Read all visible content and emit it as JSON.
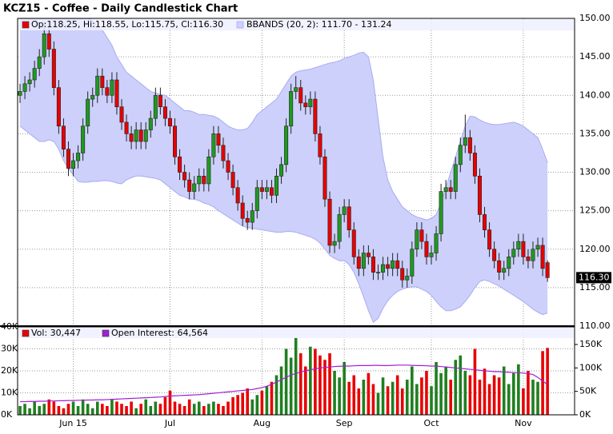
{
  "chart_data": [
    {
      "type": "candlestick",
      "title": "KCZ15 - Coffee - Daily Candlestick Chart",
      "xlim": [
        -0.5,
        114.6
      ],
      "ylim": [
        110,
        150
      ],
      "yticks": [
        {
          "value": 110,
          "label": "110.00"
        },
        {
          "value": 115,
          "label": "115.00"
        },
        {
          "value": 120,
          "label": "120.00"
        },
        {
          "value": 125,
          "label": "125.00"
        },
        {
          "value": 130,
          "label": "130.00"
        },
        {
          "value": 135,
          "label": "135.00"
        },
        {
          "value": 140,
          "label": "140.00"
        },
        {
          "value": 145,
          "label": "145.00"
        },
        {
          "value": 150,
          "label": "150.00"
        }
      ],
      "grid": true,
      "ohlc": {
        "name": "Op:118.25, Hi:118.55, Lo:115.75, Cl:116.30",
        "color": "#e80000",
        "up_color": "#1f9a1f",
        "down_color": "#e80000",
        "open": [
          140,
          140.5,
          141.5,
          142,
          143.5,
          145,
          148,
          146,
          141,
          136,
          133,
          130.5,
          131.5,
          132.5,
          136,
          139.5,
          140,
          142.5,
          141,
          140,
          142,
          138.5,
          136.5,
          135,
          134,
          135.5,
          134,
          135.5,
          137,
          140,
          138.5,
          137,
          136,
          132,
          130,
          129,
          127.5,
          128.5,
          129.5,
          128.5,
          132,
          135,
          133.5,
          131.5,
          130,
          128,
          126,
          124,
          123.5,
          125,
          128,
          127.5,
          128,
          127,
          129.5,
          131,
          136,
          140.5,
          141,
          139,
          138.5,
          139.5,
          135,
          132,
          126.5,
          120.5,
          121,
          124.5,
          125.5,
          122.5,
          119,
          117.5,
          119.5,
          119,
          117,
          117,
          118,
          117.5,
          118.5,
          117.5,
          116,
          116.5,
          120,
          122.5,
          121,
          119,
          119.5,
          122,
          127.5,
          128,
          127.5,
          131,
          133.5,
          134.5,
          132.5,
          129.5,
          124.5,
          122.5,
          120,
          118.5,
          117,
          117.5,
          119,
          120,
          121,
          119,
          118.5,
          120,
          120.5,
          118.25
        ],
        "high": [
          141.5,
          142.5,
          143,
          144.5,
          146,
          149.5,
          149,
          147,
          142,
          137,
          134,
          132.5,
          133.5,
          137,
          140.5,
          141,
          143.5,
          143.5,
          142,
          143,
          143,
          139.5,
          137.5,
          136,
          136.5,
          136.5,
          136.5,
          138,
          141,
          141,
          139.5,
          138,
          137,
          133,
          131,
          130,
          129.5,
          130.5,
          130.5,
          133,
          136,
          136,
          134.5,
          132.5,
          131,
          129,
          127,
          125,
          126,
          129,
          129,
          129,
          129,
          130.5,
          132,
          137,
          141.5,
          142.5,
          142,
          140,
          140.5,
          140.5,
          136,
          133,
          127.5,
          122,
          125.5,
          126.5,
          126.5,
          123.5,
          120,
          120.5,
          120.5,
          120,
          118,
          119,
          119,
          119.5,
          119.5,
          118.5,
          117.5,
          121,
          123.5,
          123.5,
          122,
          120.5,
          123,
          128.5,
          129,
          129,
          132,
          134.5,
          137.5,
          135.5,
          133.5,
          130.5,
          125.5,
          123.5,
          121,
          119.5,
          118.5,
          120,
          121,
          122,
          122,
          120,
          121,
          121.5,
          121.5,
          118.55
        ],
        "low": [
          139,
          139.5,
          140.5,
          141,
          142.5,
          144,
          145,
          140,
          135,
          132,
          129.5,
          129.5,
          130.5,
          131.5,
          135,
          138.5,
          139,
          140,
          139,
          139,
          137.5,
          135.5,
          134,
          133,
          133,
          133,
          133,
          134.5,
          136,
          137.5,
          136,
          135,
          131,
          129,
          128,
          126.5,
          126.5,
          127.5,
          127.5,
          127.5,
          131,
          132.5,
          130.5,
          129,
          127,
          125,
          123,
          122.5,
          122.5,
          124,
          126.5,
          126.5,
          126,
          126,
          128.5,
          130,
          135,
          139.5,
          138,
          137.5,
          137.5,
          134,
          131,
          125.5,
          119.5,
          119.5,
          120,
          123.5,
          121.5,
          118,
          116.5,
          116.5,
          118,
          116,
          116,
          116,
          116.5,
          116.5,
          116.5,
          115,
          115,
          115.5,
          119,
          120,
          118,
          118,
          118.5,
          121,
          126.5,
          126.5,
          126.5,
          130,
          132.5,
          131.5,
          128.5,
          123.5,
          121.5,
          119,
          117.5,
          116,
          116,
          116.5,
          118,
          119,
          118,
          117.5,
          117.5,
          119,
          116.5,
          115.75
        ],
        "close": [
          140.5,
          141.5,
          142,
          143.5,
          145,
          148,
          146,
          141,
          136,
          133,
          130.5,
          131.5,
          132.5,
          136,
          139.5,
          140,
          142.5,
          141,
          140,
          142,
          138.5,
          136.5,
          135,
          134,
          135.5,
          134,
          135.5,
          137,
          140,
          138.5,
          137,
          136,
          132,
          130,
          129,
          127.5,
          128.5,
          129.5,
          128.5,
          132,
          135,
          133.5,
          131.5,
          130,
          128,
          126,
          124,
          123.5,
          125,
          128,
          127.5,
          128,
          127,
          129.5,
          131,
          136,
          140.5,
          141,
          139,
          138.5,
          139.5,
          135,
          132,
          126.5,
          120.5,
          121,
          124.5,
          125.5,
          122.5,
          119,
          117.5,
          119.5,
          119,
          117,
          117,
          118,
          117.5,
          118.5,
          117.5,
          116,
          116.5,
          120,
          122.5,
          121,
          119,
          119.5,
          122,
          127.5,
          128,
          127.5,
          131,
          133.5,
          134.5,
          132.5,
          129.5,
          124.5,
          122.5,
          120,
          118.5,
          117,
          117.5,
          119,
          120,
          121,
          119,
          118.5,
          120,
          120.5,
          117.5,
          116.3
        ],
        "last_label": "116.30"
      },
      "bbands": {
        "name": "BBANDS (20, 2): 111.70 - 131.24",
        "color": "#a9acf2",
        "fill": "#ccd0fb",
        "upper": [
          150,
          150,
          150,
          150,
          150,
          150,
          150,
          150,
          150,
          150,
          150,
          150,
          150,
          150,
          150,
          149.8,
          149,
          148.5,
          147.5,
          146.5,
          145,
          144,
          143,
          142.5,
          142,
          141.5,
          141,
          140.5,
          140.3,
          140.1,
          140,
          139.5,
          139,
          138.5,
          138,
          138,
          137.8,
          137.5,
          137.5,
          137.4,
          137.3,
          137,
          136.5,
          136,
          135.7,
          135.5,
          135.5,
          135.7,
          136.5,
          137.5,
          138,
          138.5,
          139,
          139.5,
          140.5,
          141.5,
          142.5,
          143,
          143.2,
          143.3,
          143.4,
          143.6,
          143.8,
          144,
          144.2,
          144.3,
          144.5,
          144.8,
          145,
          145.2,
          145.5,
          145.6,
          145,
          142,
          137,
          132,
          129,
          127.5,
          126.5,
          125.5,
          125,
          124.5,
          124.2,
          124,
          123.8,
          124,
          124.5,
          126,
          128,
          130,
          132,
          134,
          136,
          137.3,
          137.2,
          136.8,
          136.5,
          136.3,
          136.2,
          136.2,
          136.3,
          136.4,
          136.5,
          136.3,
          136,
          135.5,
          135,
          134.5,
          133,
          131.24
        ],
        "lower": [
          136,
          135.5,
          135,
          134.5,
          134,
          134,
          134.2,
          134,
          133,
          131.5,
          130.5,
          129.7,
          128.8,
          128.7,
          128.7,
          128.8,
          128.8,
          128.9,
          128.9,
          128.8,
          128.6,
          128.5,
          129,
          129.3,
          129.5,
          129.5,
          129.4,
          129.3,
          129.2,
          129,
          128.5,
          128,
          127.5,
          127,
          126.8,
          126.5,
          126.5,
          126.3,
          126,
          125.8,
          125.5,
          125,
          124.6,
          124.2,
          123.8,
          123.4,
          123,
          122.8,
          122.7,
          122.6,
          122.5,
          122.4,
          122.3,
          122.2,
          122.2,
          122.3,
          122.3,
          122.2,
          122,
          121.8,
          121.6,
          121.3,
          120.8,
          120,
          119.2,
          118.8,
          118.5,
          118.5,
          118,
          117,
          115.5,
          113.8,
          112,
          110.5,
          111,
          112.3,
          113.3,
          114,
          114.5,
          114.8,
          115,
          115.1,
          115.1,
          114.8,
          114.5,
          114,
          113.2,
          112.5,
          112,
          112,
          112.2,
          112.5,
          113.2,
          114,
          115,
          115.8,
          116,
          115.8,
          115.5,
          115.2,
          114.8,
          114.4,
          114,
          113.6,
          113.2,
          112.7,
          112.2,
          111.8,
          111.5,
          111.7
        ]
      }
    },
    {
      "type": "bar",
      "xlim": [
        -0.5,
        114.6
      ],
      "ylim": [
        0,
        40000
      ],
      "y2lim": [
        0,
        187500
      ],
      "yticks": [
        {
          "value": 0,
          "label": "0K"
        },
        {
          "value": 10000,
          "label": "10K"
        },
        {
          "value": 20000,
          "label": "20K"
        },
        {
          "value": 30000,
          "label": "30K"
        },
        {
          "value": 40000,
          "label": "40K"
        }
      ],
      "y2ticks": [
        {
          "value": 0,
          "label": "0K"
        },
        {
          "value": 50000,
          "label": "50K"
        },
        {
          "value": 100000,
          "label": "100K"
        },
        {
          "value": 150000,
          "label": "150K"
        }
      ],
      "xticks": [
        {
          "value": 11,
          "label": "Jun 15"
        },
        {
          "value": 31,
          "label": "Jul"
        },
        {
          "value": 50,
          "label": "Aug"
        },
        {
          "value": 67,
          "label": "Sep"
        },
        {
          "value": 85,
          "label": "Oct"
        },
        {
          "value": 104,
          "label": "Nov"
        }
      ],
      "grid": true,
      "series": [
        {
          "name": "Vol: 30,447",
          "color": "#e80000",
          "up_color": "#1f7f1f",
          "values": [
            4000,
            5000,
            3000,
            6000,
            4000,
            5000,
            7000,
            6000,
            4000,
            3000,
            5000,
            6000,
            4000,
            7000,
            5000,
            3000,
            6000,
            5000,
            4000,
            7000,
            6000,
            5000,
            4000,
            6000,
            3000,
            5000,
            7000,
            4000,
            6000,
            5000,
            8000,
            11000,
            6000,
            5000,
            4000,
            7000,
            5000,
            6000,
            4000,
            5000,
            6000,
            5000,
            4000,
            6000,
            8000,
            9000,
            10000,
            12000,
            7000,
            9000,
            11000,
            13000,
            15000,
            18000,
            22000,
            30000,
            26000,
            35000,
            28000,
            22000,
            31000,
            30000,
            27000,
            25000,
            28000,
            20000,
            17000,
            24000,
            15000,
            18000,
            12000,
            16000,
            19000,
            14000,
            10000,
            17000,
            13000,
            15000,
            18000,
            12000,
            16000,
            22000,
            14000,
            17000,
            20000,
            13000,
            24000,
            19000,
            22000,
            16000,
            25000,
            27000,
            20000,
            18000,
            30000,
            16000,
            21000,
            14000,
            18000,
            17000,
            22000,
            14000,
            19000,
            23000,
            12000,
            20000,
            16000,
            15000,
            29000,
            30447
          ]
        },
        {
          "name": "Open Interest: 64,564",
          "color": "#a21fd4",
          "axis": "y2",
          "values": [
            28000,
            28000,
            28500,
            28500,
            29000,
            29000,
            29500,
            29500,
            30000,
            30000,
            30500,
            30500,
            31000,
            31000,
            31500,
            31500,
            32000,
            32000,
            32500,
            33000,
            33500,
            34000,
            34500,
            35000,
            35500,
            36000,
            36500,
            37000,
            37500,
            38000,
            39000,
            40000,
            40500,
            41000,
            41500,
            42000,
            42500,
            43000,
            44000,
            45000,
            46000,
            47000,
            48000,
            49000,
            50000,
            51000,
            52000,
            53000,
            54000,
            56000,
            58000,
            61000,
            65000,
            70000,
            75000,
            80000,
            85000,
            88000,
            91000,
            94000,
            96000,
            98000,
            100000,
            101000,
            102000,
            103000,
            103500,
            104000,
            104000,
            104500,
            105000,
            105000,
            105000,
            105500,
            105500,
            105000,
            105000,
            105500,
            106000,
            106000,
            106000,
            105500,
            105000,
            105000,
            104500,
            104000,
            104000,
            103000,
            102000,
            101000,
            100000,
            99000,
            98000,
            97000,
            96000,
            95000,
            94000,
            93000,
            92000,
            92000,
            91000,
            91000,
            90000,
            90000,
            89000,
            88000,
            86000,
            80000,
            72000,
            64564
          ]
        }
      ]
    }
  ]
}
